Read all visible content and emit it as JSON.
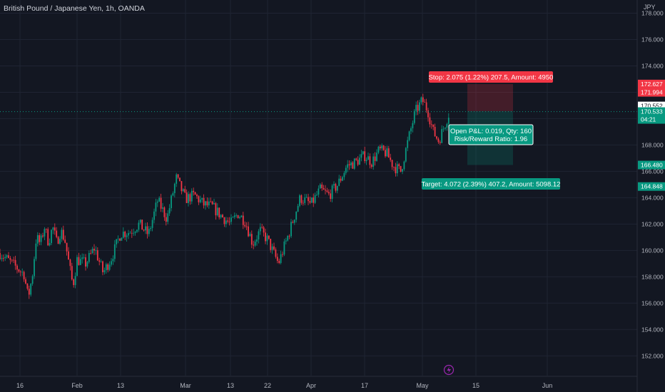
{
  "symbol_title": "British Pound / Japanese Yen, 1h, OANDA",
  "currency": "JPY",
  "chart_data": {
    "type": "candlestick",
    "ylim": [
      150.5,
      179.0
    ],
    "y_ticks": [
      152,
      154,
      156,
      158,
      160,
      162,
      164,
      166,
      168,
      170,
      172,
      174,
      176,
      178
    ],
    "y_tick_labels": [
      "152.000",
      "154.000",
      "156.000",
      "158.000",
      "160.000",
      "162.000",
      "164.000",
      "166.000",
      "168.000",
      "170.000",
      "172.000",
      "174.000",
      "176.000",
      "178.000"
    ],
    "x_ticks": [
      "16",
      "Feb",
      "13",
      "Mar",
      "13",
      "22",
      "Apr",
      "17",
      "May",
      "15",
      "Jun"
    ],
    "close_path": [
      [
        "16",
        159.8
      ],
      [
        "",
        158.2
      ],
      [
        "",
        156.4
      ],
      [
        "",
        158.0
      ],
      [
        "",
        161.0
      ],
      [
        "",
        160.5
      ],
      [
        "",
        161.8
      ],
      [
        "",
        160.6
      ],
      [
        "",
        161.8
      ],
      [
        "",
        160.6
      ],
      [
        "",
        161.5
      ],
      [
        "",
        160.8
      ],
      [
        "",
        159.0
      ],
      [
        "",
        157.3
      ],
      [
        "Feb",
        159.3
      ],
      [
        "",
        159.0
      ],
      [
        "",
        160.2
      ],
      [
        "",
        158.3
      ],
      [
        "",
        159.5
      ],
      [
        "13",
        161.3
      ],
      [
        "",
        161.4
      ],
      [
        "",
        162.0
      ],
      [
        "",
        161.2
      ],
      [
        "",
        163.8
      ],
      [
        "",
        162.4
      ],
      [
        "",
        165.5
      ],
      [
        "Mar",
        163.9
      ],
      [
        "",
        164.2
      ],
      [
        "",
        163.5
      ],
      [
        "",
        163.3
      ],
      [
        "",
        162.6
      ],
      [
        "13",
        162.0
      ],
      [
        "",
        162.8
      ],
      [
        "",
        162.2
      ],
      [
        "",
        160.5
      ],
      [
        "",
        161.5
      ],
      [
        "22",
        160.8
      ],
      [
        "",
        159.0
      ],
      [
        "",
        161.4
      ],
      [
        "",
        164.0
      ],
      [
        "Apr",
        163.5
      ],
      [
        "",
        164.6
      ],
      [
        "",
        164.2
      ],
      [
        "",
        165.0
      ],
      [
        "",
        166.4
      ],
      [
        "",
        166.7
      ],
      [
        "17",
        167.2
      ],
      [
        "",
        166.7
      ],
      [
        "",
        167.6
      ],
      [
        "",
        167.4
      ],
      [
        "",
        166.4
      ],
      [
        "",
        166.0
      ],
      [
        "",
        168.3
      ],
      [
        "",
        170.5
      ],
      [
        "May",
        171.4
      ],
      [
        "",
        170.6
      ],
      [
        "",
        169.0
      ],
      [
        "",
        168.3
      ],
      [
        "",
        169.4
      ],
      [
        "",
        170.53
      ]
    ],
    "last_price": 170.533,
    "countdown": "04:21",
    "scale_labels": [
      {
        "value": 172.627,
        "label": "172.627",
        "color": "#f23645"
      },
      {
        "value": 171.994,
        "label": "171.994",
        "color": "#f23645"
      },
      {
        "value": 170.962,
        "label": "170.552",
        "color": "#ffffff"
      },
      {
        "value": 170.551,
        "label": "170.551",
        "color": "#ffffff"
      },
      {
        "value": 166.48,
        "label": "166.480",
        "color": "#089981"
      },
      {
        "value": 164.848,
        "label": "164.848",
        "color": "#089981"
      }
    ],
    "position": {
      "entry": 170.553,
      "stop": 172.627,
      "target": 166.48,
      "stop_label": "Stop: 2.075 (1.22%) 207.5, Amount: 4950",
      "target_label": "Target: 4.072 (2.39%) 407.2, Amount: 5098.12",
      "pnl_label": "Open P&L: 0.019, Qty: 160",
      "rr_label": "Risk/Reward Ratio: 1.96"
    },
    "colors": {
      "up": "#089981",
      "down": "#f23645",
      "background": "#131722",
      "grid": "#1f2433",
      "stop_zone": "#f23645",
      "target_zone": "#089981"
    },
    "grid": true
  }
}
